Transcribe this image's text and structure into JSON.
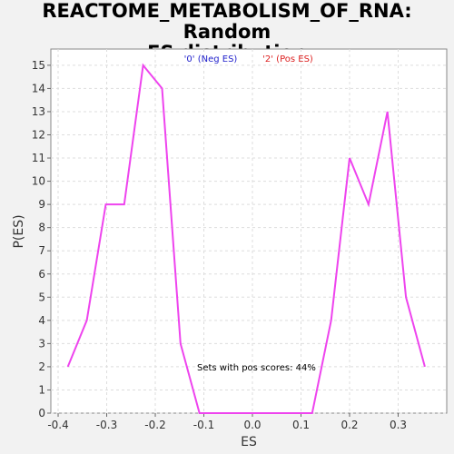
{
  "chart_data": {
    "type": "line",
    "title_line1": "REACTOME_METABOLISM_OF_RNA: Random",
    "title_line2": "ES distribution",
    "xlabel": "ES",
    "ylabel": "P(ES)",
    "xlim": [
      -0.415,
      0.4
    ],
    "ylim": [
      0,
      15.7
    ],
    "xticks": [
      "-0.4",
      "-0.3",
      "-0.2",
      "-0.1",
      "0.0",
      "0.1",
      "0.2",
      "0.3"
    ],
    "yticks": [
      "0",
      "1",
      "2",
      "3",
      "4",
      "5",
      "6",
      "7",
      "8",
      "9",
      "10",
      "11",
      "12",
      "13",
      "14",
      "15"
    ],
    "grid": true,
    "legend": [
      {
        "label": "'0' (Neg ES)",
        "color": "#2222cc"
      },
      {
        "label": "'2' (Pos ES)",
        "color": "#dd2222"
      }
    ],
    "annotation": "Sets with pos scores: 44%",
    "series": [
      {
        "color": "#ee44ee",
        "x": [
          -0.38,
          -0.341,
          -0.302,
          -0.264,
          -0.225,
          -0.186,
          -0.148,
          -0.109,
          -0.07,
          -0.032,
          0.007,
          0.046,
          0.084,
          0.123,
          0.162,
          0.2,
          0.239,
          0.278,
          0.316,
          0.355
        ],
        "y": [
          2,
          4,
          9,
          9,
          15,
          14,
          3,
          0,
          0,
          0,
          0,
          0,
          0,
          0,
          4,
          11,
          9,
          13,
          5,
          2
        ]
      }
    ]
  }
}
